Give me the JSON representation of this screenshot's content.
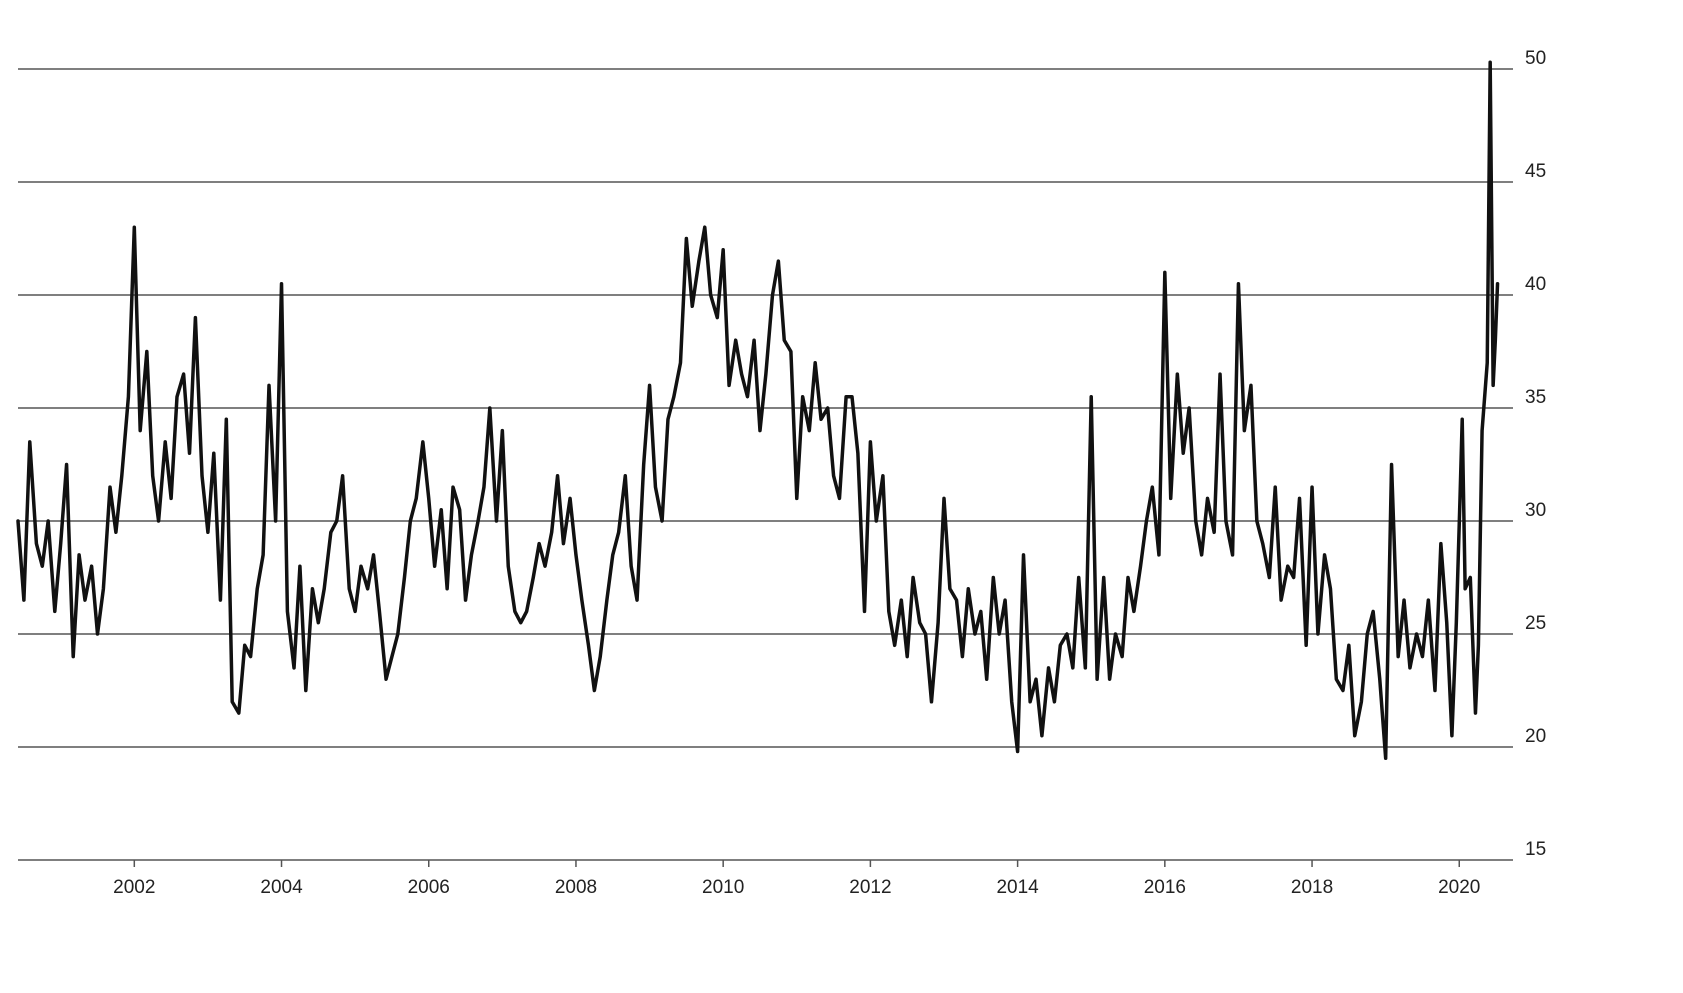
{
  "chart_data": {
    "type": "line",
    "color": "#111111",
    "grid": true,
    "xlim": [
      2000.42,
      2020.73
    ],
    "xticks": [
      2002,
      2004,
      2006,
      2008,
      2010,
      2012,
      2014,
      2016,
      2018,
      2020
    ],
    "ylim": [
      15,
      50
    ],
    "yticks": [
      15,
      20,
      25,
      30,
      35,
      40,
      45,
      50
    ],
    "x": [
      2000.42,
      2000.5,
      2000.58,
      2000.67,
      2000.75,
      2000.83,
      2000.92,
      2001,
      2001.08,
      2001.17,
      2001.25,
      2001.33,
      2001.42,
      2001.5,
      2001.58,
      2001.67,
      2001.75,
      2001.83,
      2001.92,
      2002,
      2002.08,
      2002.17,
      2002.25,
      2002.33,
      2002.42,
      2002.5,
      2002.58,
      2002.67,
      2002.75,
      2002.83,
      2002.92,
      2003,
      2003.08,
      2003.17,
      2003.25,
      2003.33,
      2003.42,
      2003.5,
      2003.58,
      2003.67,
      2003.75,
      2003.83,
      2003.92,
      2004,
      2004.08,
      2004.17,
      2004.25,
      2004.33,
      2004.42,
      2004.5,
      2004.58,
      2004.67,
      2004.75,
      2004.83,
      2004.92,
      2005,
      2005.08,
      2005.17,
      2005.25,
      2005.33,
      2005.42,
      2005.5,
      2005.58,
      2005.67,
      2005.75,
      2005.83,
      2005.92,
      2006,
      2006.08,
      2006.17,
      2006.25,
      2006.33,
      2006.42,
      2006.5,
      2006.58,
      2006.67,
      2006.75,
      2006.83,
      2006.92,
      2007,
      2007.08,
      2007.17,
      2007.25,
      2007.33,
      2007.42,
      2007.5,
      2007.58,
      2007.67,
      2007.75,
      2007.83,
      2007.92,
      2008,
      2008.08,
      2008.17,
      2008.25,
      2008.33,
      2008.42,
      2008.5,
      2008.58,
      2008.67,
      2008.75,
      2008.83,
      2008.92,
      2009,
      2009.08,
      2009.17,
      2009.25,
      2009.33,
      2009.42,
      2009.5,
      2009.58,
      2009.67,
      2009.75,
      2009.83,
      2009.92,
      2010,
      2010.08,
      2010.17,
      2010.25,
      2010.33,
      2010.42,
      2010.5,
      2010.58,
      2010.67,
      2010.75,
      2010.83,
      2010.92,
      2011,
      2011.08,
      2011.17,
      2011.25,
      2011.33,
      2011.42,
      2011.5,
      2011.58,
      2011.67,
      2011.75,
      2011.83,
      2011.92,
      2012,
      2012.08,
      2012.17,
      2012.25,
      2012.33,
      2012.42,
      2012.5,
      2012.58,
      2012.67,
      2012.75,
      2012.83,
      2012.92,
      2013,
      2013.08,
      2013.17,
      2013.25,
      2013.33,
      2013.42,
      2013.5,
      2013.58,
      2013.67,
      2013.75,
      2013.83,
      2013.92,
      2014,
      2014.08,
      2014.17,
      2014.25,
      2014.33,
      2014.42,
      2014.5,
      2014.58,
      2014.67,
      2014.75,
      2014.83,
      2014.92,
      2015,
      2015.08,
      2015.17,
      2015.25,
      2015.33,
      2015.42,
      2015.5,
      2015.58,
      2015.67,
      2015.75,
      2015.83,
      2015.92,
      2016,
      2016.08,
      2016.17,
      2016.25,
      2016.33,
      2016.42,
      2016.5,
      2016.58,
      2016.67,
      2016.75,
      2016.83,
      2016.92,
      2017,
      2017.08,
      2017.17,
      2017.25,
      2017.33,
      2017.42,
      2017.5,
      2017.58,
      2017.67,
      2017.75,
      2017.83,
      2017.92,
      2018,
      2018.08,
      2018.17,
      2018.25,
      2018.33,
      2018.42,
      2018.5,
      2018.58,
      2018.67,
      2018.75,
      2018.83,
      2018.92,
      2019,
      2019.08,
      2019.17,
      2019.25,
      2019.33,
      2019.42,
      2019.5,
      2019.58,
      2019.67,
      2019.75,
      2019.83,
      2019.9,
      2019.96,
      2020.01,
      2020.04,
      2020.08,
      2020.15,
      2020.22,
      2020.26,
      2020.31,
      2020.38,
      2020.42,
      2020.46,
      2020.49,
      2020.52
    ],
    "values": [
      30,
      26.5,
      33.5,
      29,
      28,
      30,
      26,
      29,
      32.5,
      24,
      28.5,
      26.5,
      28,
      25,
      27,
      31.5,
      29.5,
      32,
      35.5,
      43,
      34,
      37.5,
      32,
      30,
      33.5,
      31,
      35.5,
      36.5,
      33,
      39,
      32,
      29.5,
      33,
      26.5,
      34.5,
      22,
      21.5,
      24.5,
      24,
      27,
      28.5,
      36,
      30,
      40.5,
      26,
      23.5,
      28,
      22.5,
      27,
      25.5,
      27,
      29.5,
      30,
      32,
      27,
      26,
      28,
      27,
      28.5,
      26,
      23,
      24,
      25,
      27.5,
      30,
      31,
      33.5,
      31,
      28,
      30.5,
      27,
      31.5,
      30.5,
      26.5,
      28.5,
      30,
      31.5,
      35,
      30,
      34,
      28,
      26,
      25.5,
      26,
      27.5,
      29,
      28,
      29.5,
      32,
      29,
      31,
      28.5,
      26.5,
      24.5,
      22.5,
      24,
      26.5,
      28.5,
      29.5,
      32,
      28,
      26.5,
      32.5,
      36,
      31.5,
      30,
      34.5,
      35.5,
      37,
      42.5,
      39.5,
      41.5,
      43,
      40,
      39,
      42,
      36,
      38,
      36.5,
      35.5,
      38,
      34,
      36.5,
      40,
      41.5,
      38,
      37.5,
      31,
      35.5,
      34,
      37,
      34.5,
      35,
      32,
      31,
      35.5,
      35.5,
      33,
      26,
      33.5,
      30,
      32,
      26,
      24.5,
      26.5,
      24,
      27.5,
      25.5,
      25,
      22,
      25.5,
      31,
      27,
      26.5,
      24,
      27,
      25,
      26,
      23,
      27.5,
      25,
      26.5,
      22,
      19.8,
      28.5,
      22,
      23,
      20.5,
      23.5,
      22,
      24.5,
      25,
      23.5,
      27.5,
      23.5,
      35.5,
      23,
      27.5,
      23,
      25,
      24,
      27.5,
      26,
      28,
      30,
      31.5,
      28.5,
      41,
      31,
      36.5,
      33,
      35,
      30,
      28.5,
      31,
      29.5,
      36.5,
      30,
      28.5,
      40.5,
      34,
      36,
      30,
      29,
      27.5,
      31.5,
      26.5,
      28,
      27.5,
      31,
      24.5,
      31.5,
      25,
      28.5,
      27,
      23,
      22.5,
      24.5,
      20.5,
      22,
      25,
      26,
      23,
      19.5,
      32.5,
      24,
      26.5,
      23.5,
      25,
      24,
      26.5,
      22.5,
      29,
      25.5,
      20.5,
      25.5,
      31,
      34.5,
      27,
      27.5,
      21.5,
      24.5,
      34,
      37,
      50.3,
      36,
      38,
      40.5
    ]
  }
}
